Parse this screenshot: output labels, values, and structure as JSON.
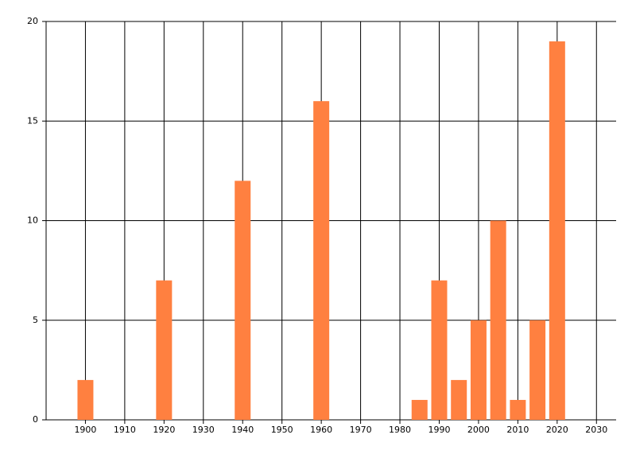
{
  "chart_data": {
    "type": "bar",
    "x": [
      1900,
      1920,
      1940,
      1960,
      1985,
      1990,
      1995,
      2000,
      2005,
      2010,
      2015,
      2020
    ],
    "values": [
      2,
      7,
      12,
      16,
      1,
      7,
      2,
      5,
      10,
      1,
      5,
      19
    ],
    "color": "#ff8040",
    "xlim": [
      1890,
      2035
    ],
    "xticks": [
      1900,
      1910,
      1920,
      1930,
      1940,
      1950,
      1960,
      1970,
      1980,
      1990,
      2000,
      2010,
      2020,
      2030
    ],
    "ylim": [
      0,
      20
    ],
    "yticks": [
      0,
      5,
      10,
      15,
      20
    ],
    "grid": true
  }
}
